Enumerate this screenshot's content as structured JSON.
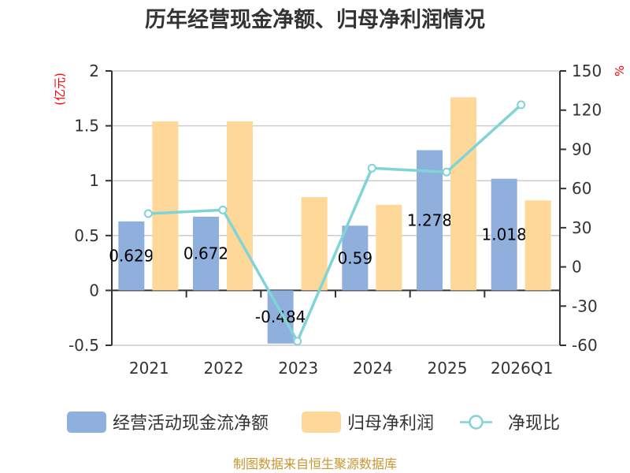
{
  "title": "历年经营现金净额、归母净利润情况",
  "source": "制图数据来自恒生聚源数据库",
  "colors": {
    "bar_ocf": "#8fafdc",
    "bar_profit": "#fed898",
    "line_ratio": "#80d4d7",
    "grid": "#cccccc",
    "axis": "#333333",
    "axis_name": "#ff0000",
    "source": "#c8962f"
  },
  "legend": [
    {
      "label": "经营活动现金流净额",
      "kind": "bar",
      "color": "#8fafdc"
    },
    {
      "label": "归母净利润",
      "kind": "bar",
      "color": "#fed898"
    },
    {
      "label": "净现比",
      "kind": "line",
      "color": "#80d4d7"
    }
  ],
  "chart_data": {
    "type": "bar",
    "title": "历年经营现金净额、归母净利润情况",
    "categories": [
      "2021",
      "2022",
      "2023",
      "2024",
      "2025",
      "2026Q1"
    ],
    "series": [
      {
        "name": "经营活动现金流净额",
        "type": "bar",
        "axis": "left",
        "values": [
          0.629,
          0.672,
          -0.484,
          0.59,
          1.278,
          1.018
        ],
        "labels": [
          "0.629",
          "0.672",
          "-0.484",
          "0.59",
          "1.278",
          "1.018"
        ]
      },
      {
        "name": "归母净利润",
        "type": "bar",
        "axis": "left",
        "values": [
          1.54,
          1.54,
          0.85,
          0.78,
          1.76,
          0.82
        ]
      },
      {
        "name": "净现比",
        "type": "line",
        "axis": "right",
        "values": [
          40.8,
          43.6,
          -56.9,
          75.6,
          72.6,
          124.1
        ]
      }
    ],
    "xlabel": "",
    "y_left": {
      "label": "(亿元)",
      "range": [
        -0.5,
        2
      ],
      "ticks": [
        "2",
        "1.5",
        "1",
        "0.5",
        "0",
        "-0.5"
      ]
    },
    "y_right": {
      "label": "%",
      "range": [
        -60,
        150
      ],
      "ticks": [
        "150",
        "120",
        "90",
        "60",
        "30",
        "0",
        "-30",
        "-60"
      ]
    },
    "grid": true,
    "legend_position": "bottom"
  }
}
